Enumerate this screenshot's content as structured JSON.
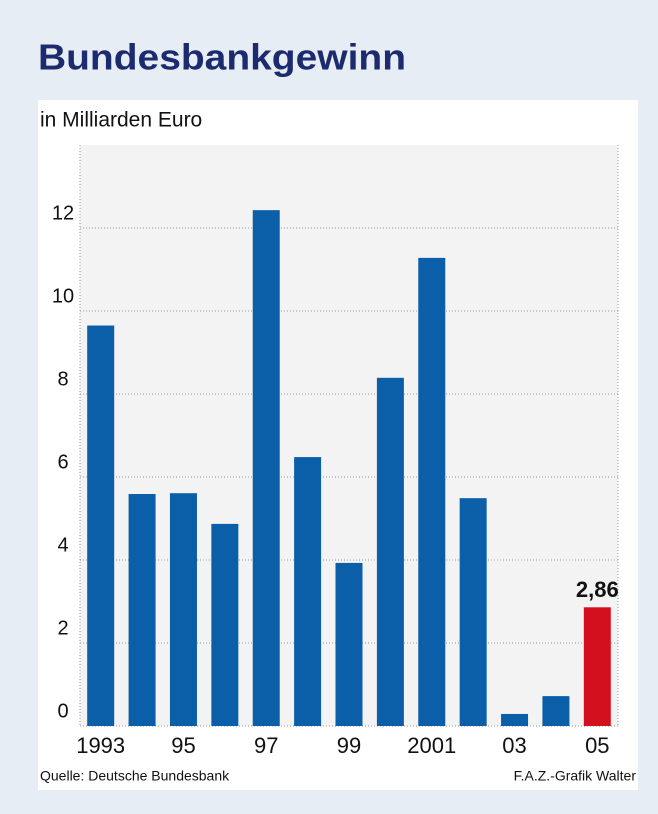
{
  "chart_data": {
    "type": "bar",
    "title": "Bundesbankgewinn",
    "subtitle": "in Milliarden Euro",
    "source": "Quelle: Deutsche Bundesbank",
    "credit": "F.A.Z.-Grafik Walter",
    "categories": [
      "1993",
      null,
      "95",
      null,
      "97",
      null,
      "99",
      null,
      "2001",
      null,
      "03",
      null,
      "05"
    ],
    "values": [
      9.65,
      5.59,
      5.61,
      4.87,
      12.43,
      6.48,
      3.93,
      8.39,
      11.28,
      5.49,
      0.29,
      0.72,
      2.86
    ],
    "value_labels": [
      null,
      null,
      null,
      null,
      null,
      null,
      null,
      null,
      null,
      null,
      null,
      null,
      "2,86"
    ],
    "colors": [
      "#0b5fa8",
      "#0b5fa8",
      "#0b5fa8",
      "#0b5fa8",
      "#0b5fa8",
      "#0b5fa8",
      "#0b5fa8",
      "#0b5fa8",
      "#0b5fa8",
      "#0b5fa8",
      "#0b5fa8",
      "#0b5fa8",
      "#d2101e"
    ],
    "ylim": [
      0,
      14
    ],
    "yticks": [
      0,
      2,
      4,
      6,
      8,
      10,
      12
    ],
    "grid": true
  }
}
